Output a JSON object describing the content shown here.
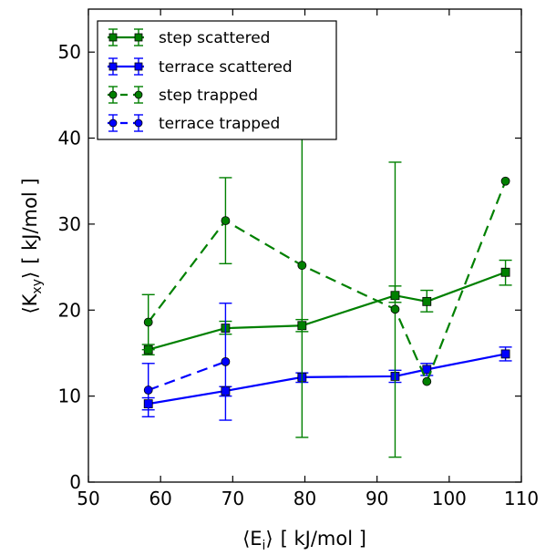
{
  "chart_data": {
    "type": "line",
    "xlabel": "⟨E_i⟩ [ kJ/mol ]",
    "ylabel": "⟨K_xy⟩ [ kJ/mol ]",
    "xlim": [
      50,
      110
    ],
    "ylim": [
      0,
      55
    ],
    "xticks": [
      50,
      60,
      70,
      80,
      90,
      100,
      110
    ],
    "yticks": [
      0,
      10,
      20,
      30,
      40,
      50
    ],
    "xtick_labels": [
      "50",
      "60",
      "70",
      "80",
      "90",
      "100",
      "110"
    ],
    "ytick_labels": [
      "0",
      "10",
      "20",
      "30",
      "40",
      "50"
    ],
    "xlabel_parts": {
      "open": "⟨E",
      "sub": "i",
      "close": "⟩",
      "unit": "[ kJ/mol ]"
    },
    "ylabel_parts": {
      "open": "⟨K",
      "sub": "xy",
      "close": "⟩",
      "unit": "[ kJ/mol ]"
    },
    "grid": false,
    "legend_position": "top-left",
    "series": [
      {
        "name": "step scattered",
        "color": "#008000",
        "linestyle": "solid",
        "marker": "square",
        "x": [
          58.3,
          69.0,
          79.6,
          92.5,
          96.9,
          107.8
        ],
        "y": [
          15.4,
          17.9,
          18.2,
          21.7,
          21.0,
          24.4
        ],
        "yerr_low": [
          14.8,
          17.2,
          17.5,
          20.9,
          19.8,
          22.9
        ],
        "yerr_high": [
          16.0,
          18.7,
          18.9,
          22.8,
          22.3,
          25.8
        ]
      },
      {
        "name": "terrace scattered",
        "color": "#0000ff",
        "linestyle": "solid",
        "marker": "square",
        "x": [
          58.3,
          69.0,
          79.6,
          92.5,
          96.9,
          107.8
        ],
        "y": [
          9.1,
          10.6,
          12.2,
          12.3,
          13.1,
          14.9
        ],
        "yerr_low": [
          8.4,
          10.0,
          11.6,
          11.6,
          12.4,
          14.1
        ],
        "yerr_high": [
          9.8,
          11.1,
          12.7,
          13.0,
          13.8,
          15.7
        ]
      },
      {
        "name": "step trapped",
        "color": "#008000",
        "linestyle": "dashed",
        "marker": "circle",
        "x": [
          58.3,
          69.0,
          79.6,
          92.5,
          96.9,
          107.8
        ],
        "y": [
          18.6,
          30.4,
          25.2,
          20.1,
          11.7,
          35.0
        ],
        "yerr_low": [
          15.4,
          25.4,
          5.2,
          2.9,
          11.7,
          35.0
        ],
        "yerr_high": [
          21.8,
          35.4,
          45.2,
          37.2,
          11.7,
          35.0
        ]
      },
      {
        "name": "terrace trapped",
        "color": "#0000ff",
        "linestyle": "dashed",
        "marker": "circle",
        "x": [
          58.3,
          69.0
        ],
        "y": [
          10.7,
          14.0
        ],
        "yerr_low": [
          7.6,
          7.2
        ],
        "yerr_high": [
          13.8,
          20.8
        ]
      }
    ]
  }
}
